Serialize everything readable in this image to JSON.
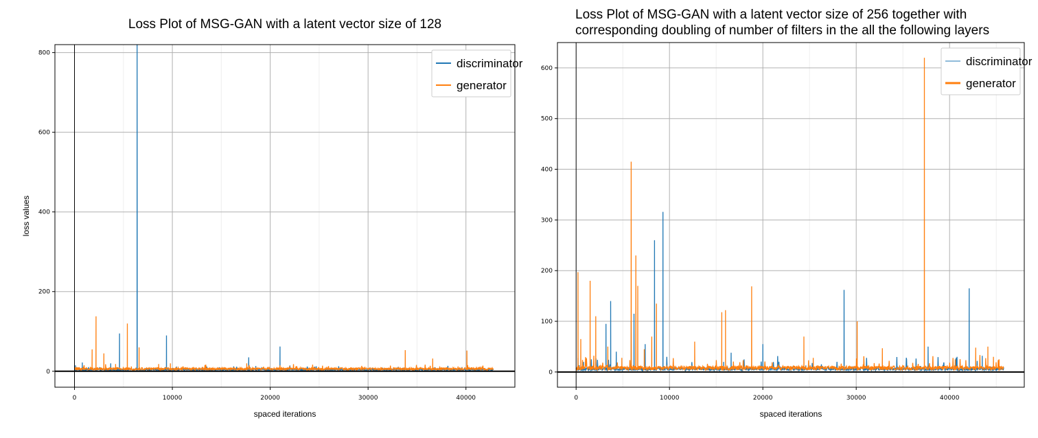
{
  "chart_data": [
    {
      "type": "line",
      "title": "Loss Plot of MSG-GAN with a latent vector size of 128",
      "xlabel": "spaced iterations",
      "ylabel": "loss values",
      "xlim": [
        -2000,
        45000
      ],
      "ylim": [
        -40,
        820
      ],
      "x_ticks": [
        0,
        10000,
        20000,
        30000,
        40000
      ],
      "x_tick_labels": [
        "0",
        "10000",
        "20000",
        "30000",
        "40000"
      ],
      "y_ticks": [
        0,
        200,
        400,
        600,
        800
      ],
      "y_tick_labels": [
        "0",
        "200",
        "400",
        "600",
        "800"
      ],
      "grid": true,
      "legend_position": "top-right",
      "x_max": 42800,
      "series": [
        {
          "name": "discriminator",
          "color": "#1f77b4",
          "baseline": 2,
          "spikes": [
            [
              100,
              15
            ],
            [
              800,
              22
            ],
            [
              3700,
              20
            ],
            [
              4600,
              95
            ],
            [
              6400,
              820
            ],
            [
              9400,
              90
            ],
            [
              17800,
              35
            ],
            [
              21000,
              62
            ]
          ]
        },
        {
          "name": "generator",
          "color": "#ff7f0e",
          "baseline": 3,
          "spikes": [
            [
              300,
              10
            ],
            [
              1800,
              55
            ],
            [
              2200,
              138
            ],
            [
              3000,
              45
            ],
            [
              4200,
              18
            ],
            [
              5400,
              120
            ],
            [
              6600,
              60
            ],
            [
              8600,
              18
            ],
            [
              9800,
              20
            ],
            [
              17600,
              20
            ],
            [
              21000,
              15
            ],
            [
              33800,
              53
            ],
            [
              36600,
              32
            ],
            [
              40100,
              52
            ]
          ]
        }
      ]
    },
    {
      "type": "line",
      "title": "Loss Plot of MSG-GAN with a latent vector size of 256 together with\ncorresponding doubling of number of filters in the all the following layers",
      "xlabel": "spaced iterations",
      "ylabel": "",
      "xlim": [
        -2000,
        48000
      ],
      "ylim": [
        -30,
        650
      ],
      "x_ticks": [
        0,
        10000,
        20000,
        30000,
        40000
      ],
      "x_tick_labels": [
        "0",
        "10000",
        "20000",
        "30000",
        "40000"
      ],
      "y_ticks": [
        0,
        100,
        200,
        300,
        400,
        500,
        600
      ],
      "y_tick_labels": [
        "0",
        "100",
        "200",
        "300",
        "400",
        "500",
        "600"
      ],
      "grid": true,
      "legend_position": "top-right",
      "x_max": 45800,
      "series": [
        {
          "name": "discriminator",
          "color": "#1f77b4",
          "baseline": 3,
          "spikes": [
            [
              200,
              28
            ],
            [
              800,
              20
            ],
            [
              3200,
              95
            ],
            [
              3700,
              140
            ],
            [
              4300,
              40
            ],
            [
              5900,
              100
            ],
            [
              6200,
              115
            ],
            [
              7400,
              55
            ],
            [
              8400,
              260
            ],
            [
              9300,
              316
            ],
            [
              15800,
              20
            ],
            [
              16600,
              38
            ],
            [
              20000,
              55
            ],
            [
              28700,
              162
            ],
            [
              37700,
              50
            ],
            [
              40800,
              30
            ],
            [
              42100,
              165
            ],
            [
              43500,
              32
            ]
          ]
        },
        {
          "name": "generator",
          "color": "#ff7f0e",
          "baseline": 4,
          "spikes": [
            [
              200,
              197
            ],
            [
              500,
              65
            ],
            [
              1500,
              180
            ],
            [
              2100,
              110
            ],
            [
              3400,
              50
            ],
            [
              4900,
              28
            ],
            [
              5900,
              415
            ],
            [
              6400,
              230
            ],
            [
              6600,
              170
            ],
            [
              7300,
              45
            ],
            [
              8100,
              70
            ],
            [
              8600,
              135
            ],
            [
              12700,
              60
            ],
            [
              15600,
              118
            ],
            [
              16000,
              122
            ],
            [
              18800,
              169
            ],
            [
              24400,
              70
            ],
            [
              25400,
              28
            ],
            [
              30100,
              100
            ],
            [
              32800,
              47
            ],
            [
              37300,
              620
            ],
            [
              40600,
              25
            ],
            [
              42800,
              48
            ],
            [
              44100,
              50
            ],
            [
              44700,
              30
            ],
            [
              45300,
              25
            ]
          ]
        }
      ]
    }
  ]
}
